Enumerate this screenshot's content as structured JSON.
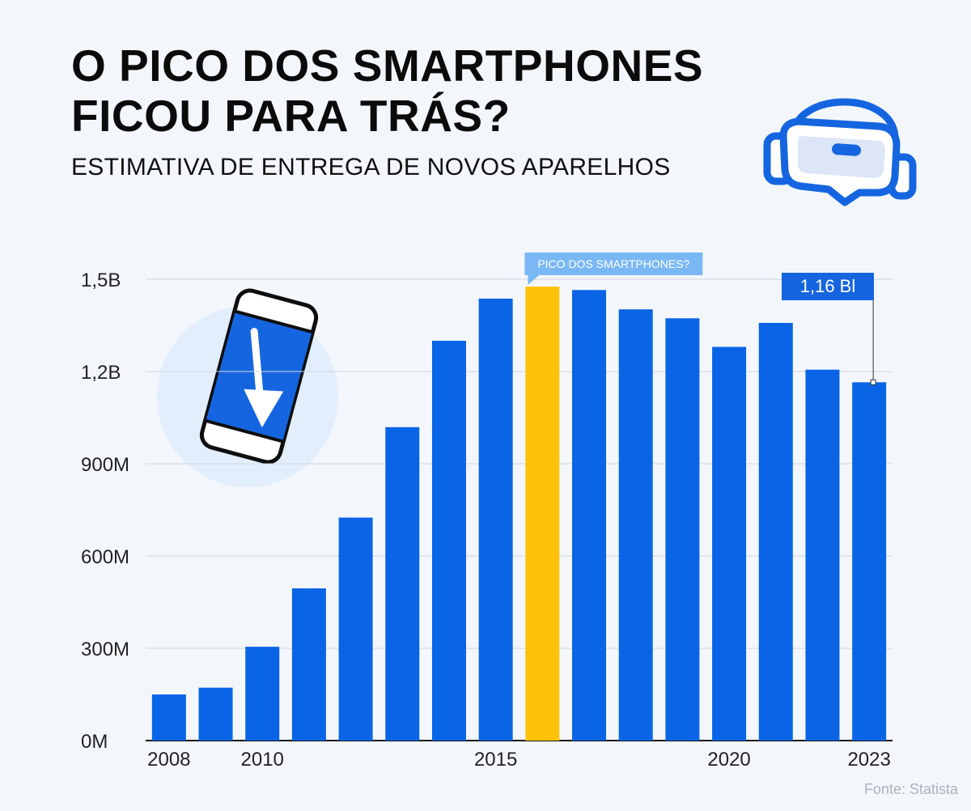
{
  "header": {
    "title_line1": "O PICO DOS SMARTPHONES",
    "title_line2": "FICOU PARA TRÁS?",
    "subtitle": "ESTIMATIVA DE ENTREGA DE NOVOS APARELHOS"
  },
  "icons": {
    "headset": "vr-headset-icon",
    "phone": "phone-down-arrow-icon"
  },
  "colors": {
    "bar": "#0a64e6",
    "highlight": "#ffc107",
    "callout": "#1565e0",
    "peak_label_bg": "#7ab8f5"
  },
  "footer": {
    "source": "Fonte: Statista"
  },
  "chart_data": {
    "type": "bar",
    "categories": [
      "2008",
      "2009",
      "2010",
      "2011",
      "2012",
      "2013",
      "2014",
      "2015",
      "2016",
      "2017",
      "2018",
      "2019",
      "2020",
      "2021",
      "2022",
      "2023"
    ],
    "values": [
      150,
      172,
      305,
      495,
      725,
      1019,
      1300,
      1437,
      1476,
      1465,
      1402,
      1373,
      1280,
      1358,
      1206,
      1165
    ],
    "highlight_category": "2016",
    "x_tick_labels": [
      "2008",
      "2010",
      "2015",
      "2020",
      "2023"
    ],
    "y_ticks": [
      {
        "value": 0,
        "label": "0M"
      },
      {
        "value": 300,
        "label": "300M"
      },
      {
        "value": 600,
        "label": "600M"
      },
      {
        "value": 900,
        "label": "900M"
      },
      {
        "value": 1200,
        "label": "1,2B"
      },
      {
        "value": 1500,
        "label": "1,5B"
      }
    ],
    "ylim": [
      0,
      1500
    ],
    "annotations": [
      {
        "category": "2016",
        "text": "PICO DOS SMARTPHONES?"
      },
      {
        "category": "2023",
        "text": "1,16 Bl"
      }
    ],
    "xlabel": "",
    "ylabel": "",
    "grid": true,
    "legend": "none"
  }
}
